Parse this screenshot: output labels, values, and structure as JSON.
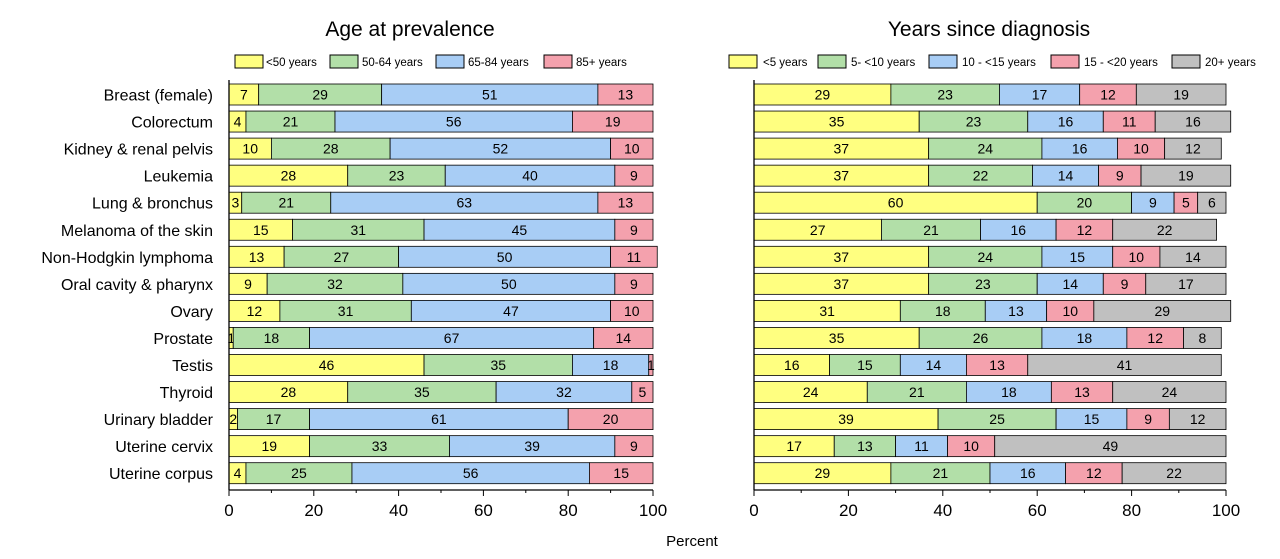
{
  "chart_data": {
    "type": "stacked-horizontal-bar",
    "xlabel": "Percent",
    "xlim": [
      0,
      100
    ],
    "xticks": [
      0,
      20,
      40,
      60,
      80,
      100
    ],
    "categories": [
      "Breast (female)",
      "Colorectum",
      "Kidney & renal pelvis",
      "Leukemia",
      "Lung & bronchus",
      "Melanoma of the skin",
      "Non-Hodgkin lymphoma",
      "Oral cavity & pharynx",
      "Ovary",
      "Prostate",
      "Testis",
      "Thyroid",
      "Urinary bladder",
      "Uterine cervix",
      "Uterine corpus"
    ],
    "panels": [
      {
        "title": "Age at prevalence",
        "series": [
          {
            "name": "<50 years",
            "color": "#ffff80",
            "values": [
              7,
              4,
              10,
              28,
              3,
              15,
              13,
              9,
              12,
              1,
              46,
              28,
              2,
              19,
              4
            ]
          },
          {
            "name": "50-64 years",
            "color": "#b2dfa8",
            "values": [
              29,
              21,
              28,
              23,
              21,
              31,
              27,
              32,
              31,
              18,
              35,
              35,
              17,
              33,
              25
            ]
          },
          {
            "name": "65-84 years",
            "color": "#a8cdf5",
            "values": [
              51,
              56,
              52,
              40,
              63,
              45,
              50,
              50,
              47,
              67,
              18,
              32,
              61,
              39,
              56
            ]
          },
          {
            "name": "85+ years",
            "color": "#f4a1ad",
            "values": [
              13,
              19,
              10,
              9,
              13,
              9,
              11,
              9,
              10,
              14,
              1,
              5,
              20,
              9,
              15
            ]
          }
        ]
      },
      {
        "title": "Years since diagnosis",
        "series": [
          {
            "name": "<5 years",
            "color": "#ffff80",
            "values": [
              29,
              35,
              37,
              37,
              60,
              27,
              37,
              37,
              31,
              35,
              16,
              24,
              39,
              17,
              29
            ]
          },
          {
            "name": "5- <10 years",
            "color": "#b2dfa8",
            "values": [
              23,
              23,
              24,
              22,
              20,
              21,
              24,
              23,
              18,
              26,
              15,
              21,
              25,
              13,
              21
            ]
          },
          {
            "name": "10 - <15 years",
            "color": "#a8cdf5",
            "values": [
              17,
              16,
              16,
              14,
              9,
              16,
              15,
              14,
              13,
              18,
              14,
              18,
              15,
              11,
              16
            ]
          },
          {
            "name": "15 - <20 years",
            "color": "#f4a1ad",
            "values": [
              12,
              11,
              10,
              9,
              5,
              12,
              10,
              9,
              10,
              12,
              13,
              13,
              9,
              10,
              12
            ]
          },
          {
            "name": "20+ years",
            "color": "#c0c0c0",
            "values": [
              19,
              16,
              12,
              19,
              6,
              22,
              14,
              17,
              29,
              8,
              41,
              24,
              12,
              49,
              22
            ]
          }
        ]
      }
    ]
  }
}
